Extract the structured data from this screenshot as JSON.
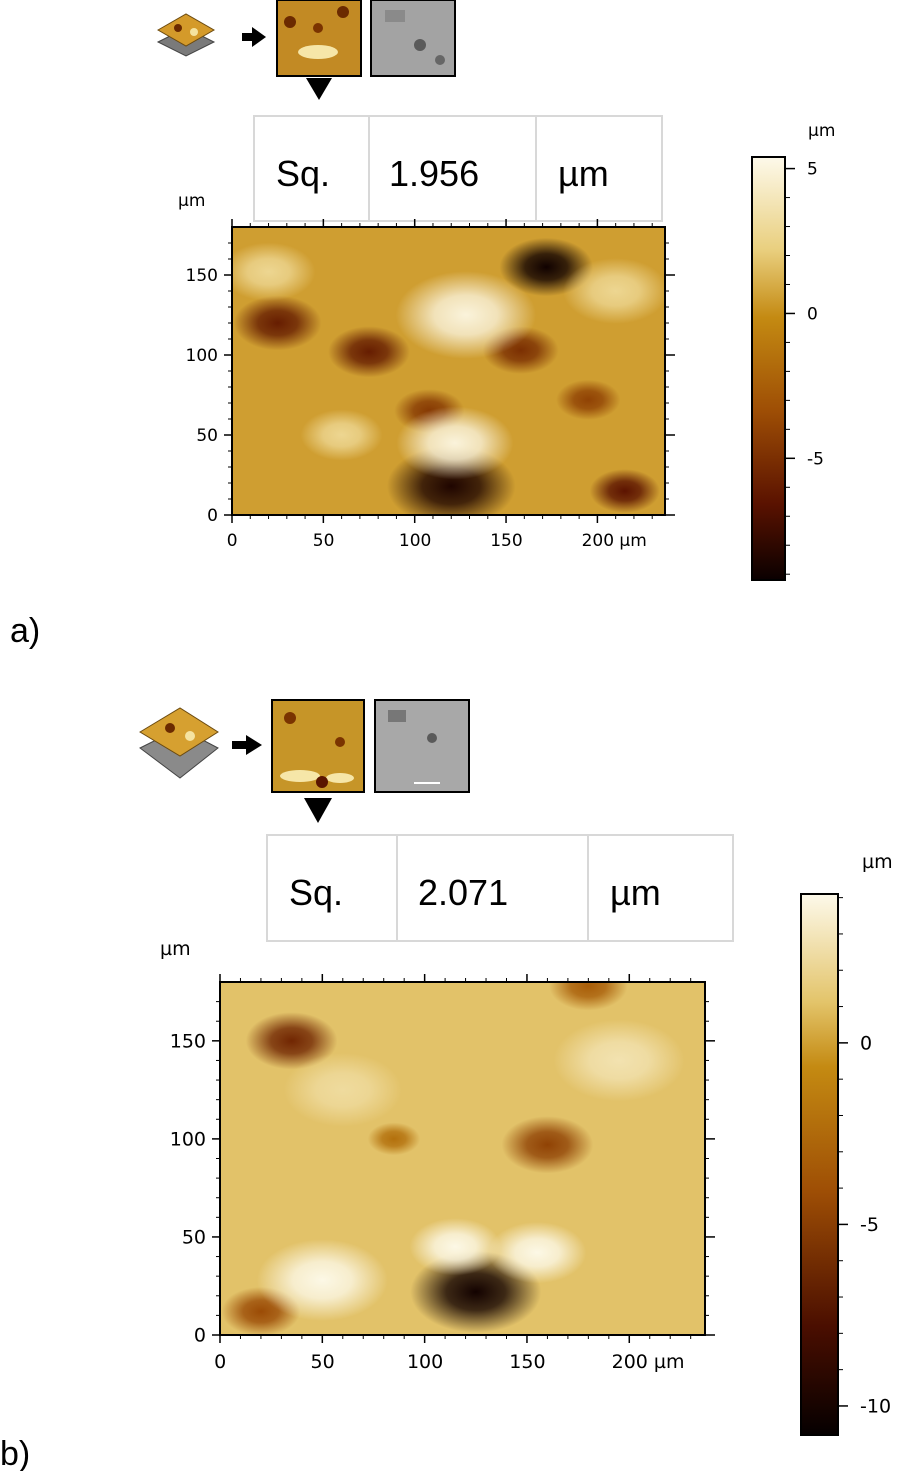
{
  "colors": {
    "gold_light": "#fdf8e6",
    "gold_mid": "#c9900e",
    "gold_dark": "#6b2a00",
    "black": "#0b0000",
    "box_border": "#d8d8d8"
  },
  "icons": [
    "layer-stack-icon",
    "arrow-right-icon",
    "topography-thumbnail",
    "sem-thumbnail",
    "triangle-down-icon"
  ],
  "chart_data": [
    {
      "type": "heatmap",
      "panel_label": "a)",
      "stat_name": "Sq.",
      "stat_value": "1.956",
      "stat_unit": "µm",
      "xlabel_unit": "µm",
      "ylabel_unit": "µm",
      "colorbar_unit": "µm",
      "x_ticks": [
        0,
        50,
        100,
        150,
        200
      ],
      "x_tick_labels": [
        "0",
        "50",
        "100",
        "150",
        "200 µm"
      ],
      "y_ticks": [
        0,
        50,
        100,
        150
      ],
      "y_tick_labels": [
        "0",
        "50",
        "100",
        "150"
      ],
      "xlim": [
        0,
        237
      ],
      "ylim": [
        0,
        180
      ],
      "colorbar_ticks": [
        5,
        0,
        -5
      ],
      "colorbar_tick_labels": [
        "5",
        "0",
        "-5"
      ],
      "colorbar_range": [
        -9.2,
        5.4
      ],
      "features": [
        {
          "x": 172,
          "y": 155,
          "h": -9.0,
          "r": 16
        },
        {
          "x": 25,
          "y": 120,
          "h": -6.0,
          "r": 15
        },
        {
          "x": 75,
          "y": 102,
          "h": -6.0,
          "r": 14
        },
        {
          "x": 158,
          "y": 103,
          "h": -5.0,
          "r": 13
        },
        {
          "x": 108,
          "y": 65,
          "h": -4.5,
          "r": 12
        },
        {
          "x": 195,
          "y": 72,
          "h": -4.0,
          "r": 11
        },
        {
          "x": 120,
          "y": 18,
          "h": -8.5,
          "r": 22
        },
        {
          "x": 215,
          "y": 15,
          "h": -6.5,
          "r": 12
        },
        {
          "x": 128,
          "y": 125,
          "h": 5.0,
          "r": 24
        },
        {
          "x": 122,
          "y": 45,
          "h": 5.0,
          "r": 20
        },
        {
          "x": 210,
          "y": 140,
          "h": 3.0,
          "r": 18
        },
        {
          "x": 20,
          "y": 152,
          "h": 3.0,
          "r": 16
        },
        {
          "x": 60,
          "y": 50,
          "h": 3.0,
          "r": 14
        }
      ]
    },
    {
      "type": "heatmap",
      "panel_label": "b)",
      "stat_name": "Sq.",
      "stat_value": "2.071",
      "stat_unit": "µm",
      "xlabel_unit": "µm",
      "ylabel_unit": "µm",
      "colorbar_unit": "µm",
      "x_ticks": [
        0,
        50,
        100,
        150,
        200
      ],
      "x_tick_labels": [
        "0",
        "50",
        "100",
        "150",
        "200 µm"
      ],
      "y_ticks": [
        0,
        50,
        100,
        150
      ],
      "y_tick_labels": [
        "0",
        "50",
        "100",
        "150"
      ],
      "xlim": [
        0,
        237
      ],
      "ylim": [
        0,
        180
      ],
      "colorbar_ticks": [
        0,
        -5,
        -10
      ],
      "colorbar_tick_labels": [
        "0",
        "-5",
        "-10"
      ],
      "colorbar_range": [
        -10.8,
        4.1
      ],
      "features": [
        {
          "x": 35,
          "y": 150,
          "h": -7.0,
          "r": 14
        },
        {
          "x": 160,
          "y": 97,
          "h": -5.5,
          "r": 14
        },
        {
          "x": 85,
          "y": 100,
          "h": -3.0,
          "r": 8
        },
        {
          "x": 125,
          "y": 22,
          "h": -10.5,
          "r": 20
        },
        {
          "x": 20,
          "y": 12,
          "h": -5.0,
          "r": 12
        },
        {
          "x": 180,
          "y": 178,
          "h": -4.0,
          "r": 12
        },
        {
          "x": 50,
          "y": 28,
          "h": 4.0,
          "r": 20
        },
        {
          "x": 115,
          "y": 45,
          "h": 4.0,
          "r": 14
        },
        {
          "x": 155,
          "y": 42,
          "h": 4.0,
          "r": 15
        },
        {
          "x": 195,
          "y": 140,
          "h": 2.5,
          "r": 20
        },
        {
          "x": 60,
          "y": 125,
          "h": 2.0,
          "r": 18
        }
      ]
    }
  ]
}
